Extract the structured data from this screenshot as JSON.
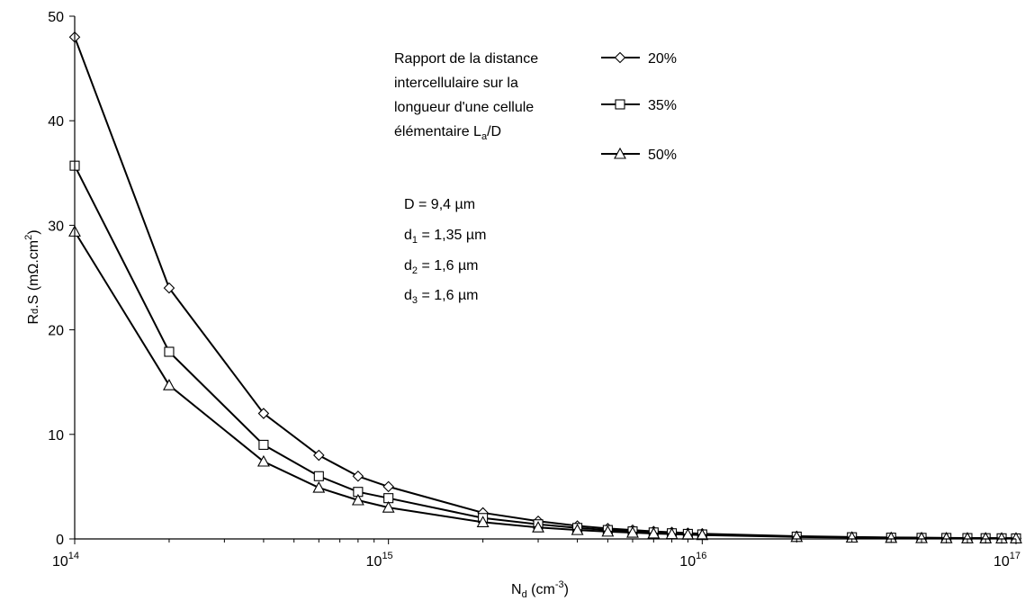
{
  "chart_data": {
    "type": "line",
    "x_scale": "log",
    "xlim": [
      100000000000000.0,
      1e+17
    ],
    "ylim": [
      0,
      50
    ],
    "yticks": [
      0,
      10,
      20,
      30,
      40,
      50
    ],
    "xticks": [
      {
        "value": 100000000000000.0,
        "base": "10",
        "exp": "14"
      },
      {
        "value": 1000000000000000.0,
        "base": "10",
        "exp": "15"
      },
      {
        "value": 1e+16,
        "base": "10",
        "exp": "16"
      },
      {
        "value": 1e+17,
        "base": "10",
        "exp": "17"
      }
    ],
    "xlabel": {
      "main": "N",
      "sub": "d",
      "rest": " (cm",
      "sup": "-3",
      "end": ")"
    },
    "ylabel": {
      "main": "R",
      "sub": "d",
      "rest": ".S (mΩ.cm",
      "sup": "2",
      "end": ")"
    },
    "grid": false,
    "legend_position": "top-right",
    "legend_title": {
      "line1": "Rapport de la distance",
      "line2": "intercellulaire sur la",
      "line3": "longueur d'une cellule",
      "line4_prefix": "élémentaire  L",
      "line4_sub": "a",
      "line4_suffix": "/D"
    },
    "annotations": {
      "D": {
        "prefix": "D",
        "sub": "",
        "value": " = 9,4 µm"
      },
      "d1": {
        "prefix": "d",
        "sub": "1",
        "value": " = 1,35 µm"
      },
      "d2": {
        "prefix": "d",
        "sub": "2",
        "value": " = 1,6 µm"
      },
      "d3": {
        "prefix": "d",
        "sub": "3",
        "value": " = 1,6 µm"
      }
    },
    "x": [
      100000000000000.0,
      200000000000000.0,
      400000000000000.0,
      600000000000000.0,
      800000000000000.0,
      1000000000000000.0,
      2000000000000000.0,
      3000000000000000.0,
      4000000000000000.0,
      5000000000000000.0,
      6000000000000000.0,
      7000000000000000.0,
      8000000000000000.0,
      9000000000000000.0,
      1e+16,
      2e+16,
      3e+16,
      4e+16,
      5e+16,
      6e+16,
      7e+16,
      8e+16,
      9e+16,
      1e+17
    ],
    "series": [
      {
        "name": "20%",
        "marker": "diamond",
        "values": [
          48,
          24,
          12,
          8,
          6,
          5,
          2.5,
          1.7,
          1.25,
          1.0,
          0.85,
          0.72,
          0.63,
          0.56,
          0.5,
          0.26,
          0.18,
          0.14,
          0.12,
          0.1,
          0.09,
          0.08,
          0.07,
          0.06
        ]
      },
      {
        "name": "35%",
        "marker": "square",
        "values": [
          35.7,
          17.9,
          9.0,
          6.0,
          4.5,
          3.9,
          2.0,
          1.4,
          1.05,
          0.85,
          0.72,
          0.62,
          0.54,
          0.48,
          0.43,
          0.22,
          0.16,
          0.12,
          0.1,
          0.09,
          0.08,
          0.07,
          0.06,
          0.05
        ]
      },
      {
        "name": "50%",
        "marker": "triangle",
        "values": [
          29.4,
          14.7,
          7.4,
          4.9,
          3.7,
          3.0,
          1.6,
          1.1,
          0.85,
          0.7,
          0.6,
          0.52,
          0.46,
          0.41,
          0.37,
          0.19,
          0.13,
          0.1,
          0.08,
          0.07,
          0.06,
          0.06,
          0.05,
          0.05
        ]
      }
    ]
  }
}
